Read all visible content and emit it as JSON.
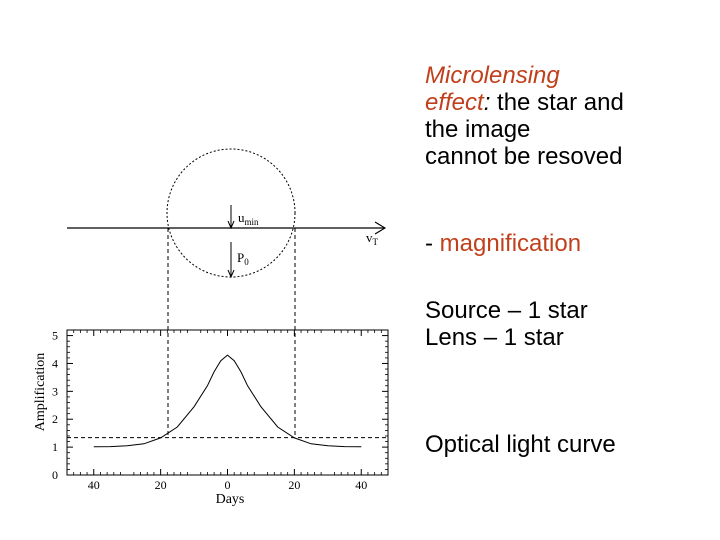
{
  "text": {
    "headline_part1": "Microlensing",
    "headline_part2": "effect",
    "headline_colon": ":",
    "headline_rest1": " the star and",
    "headline_rest2": "the image",
    "headline_rest3": "cannot be resoved",
    "magnification_dash": "- ",
    "magnification_word": "magnification",
    "source_line": "Source – 1 star",
    "lens_line": "Lens – 1 star",
    "curve_line": "Optical light curve"
  },
  "diagram": {
    "label_umin_base": "u",
    "label_umin_sub": "min",
    "label_p0_base": "P",
    "label_p0_sub": "0",
    "label_vt_base": "v",
    "label_vt_sub": "T"
  },
  "chart_data": {
    "type": "line",
    "xlabel": "Days",
    "ylabel": "Amplification",
    "xlim": [
      -48,
      48
    ],
    "ylim": [
      0,
      5.2
    ],
    "xticks": [
      -40,
      -20,
      0,
      20,
      40
    ],
    "xtick_labels": [
      "40",
      "20",
      "0",
      "20",
      "40"
    ],
    "yticks": [
      0,
      1,
      2,
      3,
      4,
      5
    ],
    "ytick_labels": [
      "0",
      "1",
      "2",
      "3",
      "4",
      "5"
    ],
    "threshold": 1.34,
    "curve": {
      "x": [
        -40,
        -35,
        -30,
        -25,
        -20,
        -15,
        -10,
        -6,
        -4,
        -2,
        0,
        2,
        4,
        6,
        10,
        15,
        20,
        25,
        30,
        35,
        40
      ],
      "y": [
        1.01,
        1.02,
        1.05,
        1.12,
        1.33,
        1.72,
        2.45,
        3.2,
        3.7,
        4.1,
        4.3,
        4.1,
        3.7,
        3.2,
        2.45,
        1.72,
        1.33,
        1.12,
        1.05,
        1.02,
        1.01
      ]
    }
  },
  "colors": {
    "accent": "#c0401c",
    "text": "#000000"
  }
}
